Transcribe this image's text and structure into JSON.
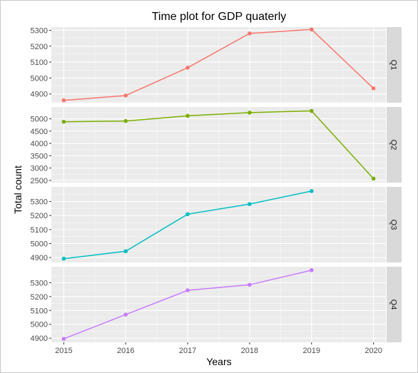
{
  "chart_data": {
    "type": "line",
    "title": "Time plot for GDP quaterly",
    "xlabel": "Years",
    "ylabel": "Total count",
    "x_ticks": [
      "2015",
      "2016",
      "2017",
      "2018",
      "2019",
      "2020"
    ],
    "xlim": [
      2014.8,
      2020.2
    ],
    "grid": true,
    "colors": {
      "panel_bg": "#ebebeb",
      "strip_bg": "#d9d9d9",
      "grid": "#ffffff",
      "frame": "#333333"
    },
    "series": [
      {
        "name": "Q1",
        "color": "#f8766d",
        "x": [
          2015,
          2016,
          2017,
          2018,
          2019,
          2020
        ],
        "values": [
          4860,
          4890,
          5065,
          5280,
          5305,
          4935
        ],
        "ylim": [
          4845,
          5320
        ],
        "yticks": [
          "4900",
          "5000",
          "5100",
          "5200",
          "5300"
        ]
      },
      {
        "name": "Q2",
        "color": "#7cae00",
        "x": [
          2015,
          2016,
          2017,
          2018,
          2019,
          2020
        ],
        "values": [
          4880,
          4910,
          5120,
          5250,
          5320,
          2570
        ],
        "ylim": [
          2410,
          5480
        ],
        "yticks": [
          "2500",
          "3000",
          "3500",
          "4000",
          "4500",
          "5000"
        ]
      },
      {
        "name": "Q3",
        "color": "#00bfc4",
        "x": [
          2015,
          2016,
          2017,
          2018,
          2019
        ],
        "values": [
          4892,
          4945,
          5210,
          5282,
          5375
        ],
        "ylim": [
          4865,
          5405
        ],
        "yticks": [
          "4900",
          "5000",
          "5100",
          "5200",
          "5300"
        ]
      },
      {
        "name": "Q4",
        "color": "#c77cff",
        "x": [
          2015,
          2016,
          2017,
          2018,
          2019
        ],
        "values": [
          4895,
          5070,
          5245,
          5285,
          5390
        ],
        "ylim": [
          4870,
          5415
        ],
        "yticks": [
          "4900",
          "5000",
          "5100",
          "5200",
          "5300"
        ]
      }
    ]
  }
}
